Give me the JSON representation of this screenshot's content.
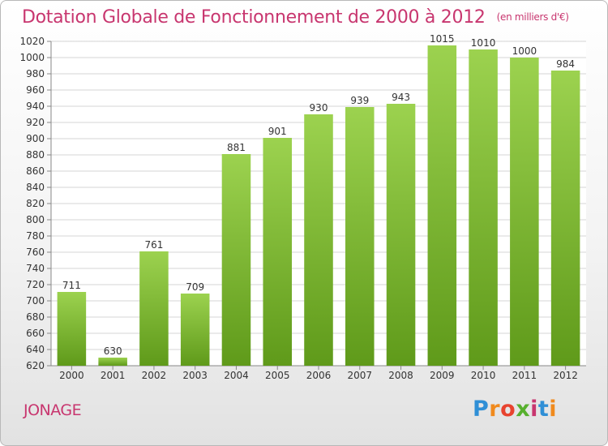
{
  "header": {
    "title": "Dotation Globale de Fonctionnement de 2000 à 2012",
    "subtitle": "(en milliers d'€)"
  },
  "footer": {
    "commune": "JONAGE",
    "brand": "Proxiti"
  },
  "colors": {
    "title": "#c8366f",
    "bar_light": "#9cd24f",
    "bar_dark": "#5f9a1a",
    "grid": "#d4d4d4"
  },
  "chart_data": {
    "type": "bar",
    "title": "Dotation Globale de Fonctionnement de 2000 à 2012",
    "subtitle": "(en milliers d'€)",
    "xlabel": "",
    "ylabel": "",
    "categories": [
      "2000",
      "2001",
      "2002",
      "2003",
      "2004",
      "2005",
      "2006",
      "2007",
      "2008",
      "2009",
      "2010",
      "2011",
      "2012"
    ],
    "values": [
      711,
      630,
      761,
      709,
      881,
      901,
      930,
      939,
      943,
      1015,
      1010,
      1000,
      984
    ],
    "ylim": [
      620,
      1020
    ],
    "ytick_step": 20,
    "grid": true,
    "legend": "none"
  }
}
